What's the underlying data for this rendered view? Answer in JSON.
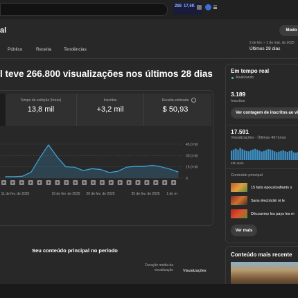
{
  "header": {
    "stats": [
      "268",
      "17,6K"
    ]
  },
  "page": {
    "title": "al",
    "mode_button": "Modo a",
    "tabs": [
      "Público",
      "Receita",
      "Tendências"
    ],
    "date_range": "2 de fev. – 1 de mar. de 2025",
    "period": "Últimos 28 dias"
  },
  "summary": {
    "headline": "l teve 266.800 visualizações nos últimos 28 dias",
    "metrics": [
      {
        "label": "Tempo de exibição (horas)",
        "value": "13,8 mil"
      },
      {
        "label": "Inscritos",
        "value": "+3,2 mil"
      },
      {
        "label": "Receita estimada",
        "value": "$ 50,93"
      }
    ]
  },
  "chart": {
    "type": "line",
    "color": "#41a7e0",
    "values": [
      2000,
      2000,
      2500,
      8000,
      27000,
      44000,
      28000,
      15000,
      14500,
      10000,
      12500,
      11500,
      7500,
      9000,
      14500,
      15500,
      15500,
      17000,
      15000,
      12000,
      8000
    ],
    "ylim": [
      0,
      45000
    ],
    "yticks": [
      0,
      {
        "value": 15000,
        "label": "15,0 mil"
      },
      {
        "value": 30000,
        "label": "30,0 mil"
      },
      {
        "value": 45000,
        "label": "45,0 mil"
      }
    ],
    "xlabels": [
      "11 de fev. de 2025",
      "16 de fev. de 2025",
      "20 de fev. de 2025",
      "25 de fev. de 2025",
      "1 de m"
    ]
  },
  "top_content": {
    "title": "Seu conteúdo principal no período",
    "columns": [
      "Duração média da visualização",
      "Visualizações"
    ]
  },
  "realtime": {
    "title": "Em tempo real",
    "status": "Atualizando",
    "subscribers": "3.189",
    "subscribers_label": "Inscritos",
    "subscribers_button": "Ver contagem de inscritos ao vi",
    "views": "17.591",
    "views_label": "Visualizações · Últimas 48 horas",
    "bars": [
      62,
      70,
      75,
      68,
      80,
      72,
      66,
      60,
      58,
      64,
      70,
      74,
      68,
      62,
      56,
      60,
      66,
      72,
      70,
      64,
      58,
      52,
      56,
      60,
      64,
      58,
      54,
      60,
      62,
      50,
      48,
      55
    ],
    "bars_label": "48h atrás",
    "content_label": "Conteúdo principal",
    "items": [
      "15 faits époustouflants s",
      "Sans électricité ni le",
      "Découvrez les pays les m"
    ],
    "more_button": "Ver mais"
  },
  "latest": {
    "title": "Conteúdo mais recente"
  }
}
